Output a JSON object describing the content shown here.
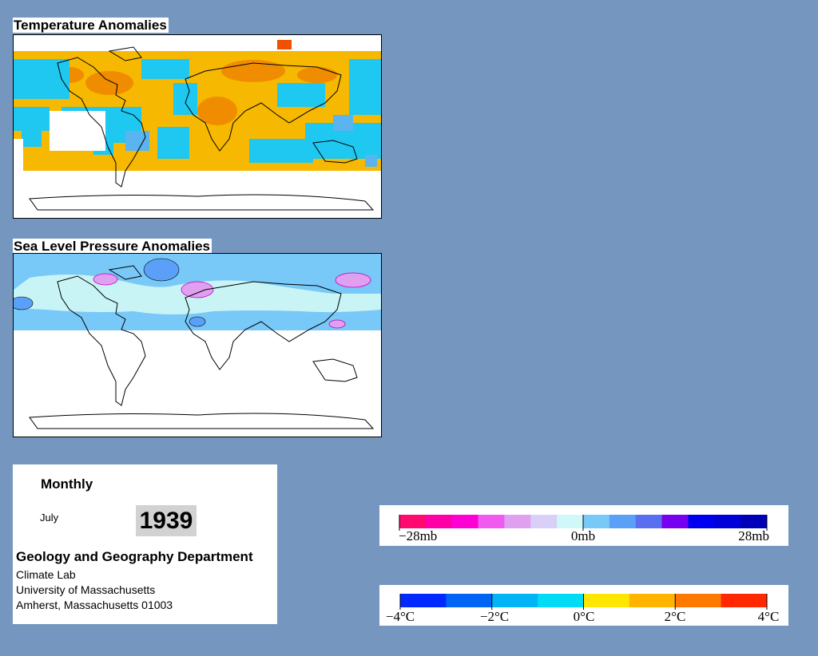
{
  "maps": {
    "temperature": {
      "title": "Temperature Anomalies"
    },
    "pressure": {
      "title": "Sea Level Pressure Anomalies"
    }
  },
  "info": {
    "period": "Monthly",
    "month": "July",
    "year": "1939",
    "department": "Geology and Geography Department",
    "lab": "Climate Lab",
    "university": "University of Massachusetts",
    "address": "Amherst, Massachusetts 01003"
  },
  "legends": {
    "pressure": {
      "labels": [
        "−28mb",
        "0mb",
        "28mb"
      ],
      "colors": [
        "#ff0a6e",
        "#ff00a8",
        "#ff00d4",
        "#f05af0",
        "#e0a0f0",
        "#d8d0f8",
        "#d0f8f8",
        "#78c8f8",
        "#5aa0f8",
        "#5a6ef0",
        "#7800f0",
        "#0000f0",
        "#0000d8",
        "#0000b8"
      ]
    },
    "temperature": {
      "labels": [
        "−4°C",
        "−2°C",
        "0°C",
        "2°C",
        "4°C"
      ],
      "colors": [
        "#0028ff",
        "#0064f5",
        "#00b4f5",
        "#00dcf5",
        "#ffe600",
        "#ffb400",
        "#ff7800",
        "#ff2800"
      ]
    }
  },
  "colors": {
    "background": "#7597bf",
    "warm_anomaly": "#f4a800",
    "cool_anomaly": "#1ec8f0",
    "slp_light": "#c8f4f6",
    "slp_mid": "#78c8f8"
  }
}
